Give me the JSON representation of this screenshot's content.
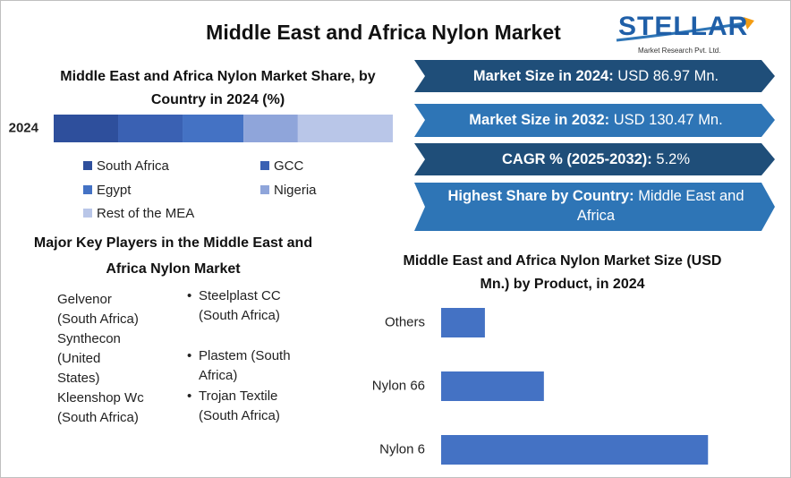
{
  "header": {
    "title": "Middle East and Africa Nylon Market",
    "logo": "STELLAR",
    "tagline": "Market Research Pvt. Ltd."
  },
  "stats": [
    {
      "label": "Market Size in 2024:",
      "value": "USD 86.97 Mn."
    },
    {
      "label": "Market Size in 2032:",
      "value": "USD 130.47 Mn."
    },
    {
      "label": "CAGR % (2025-2032):",
      "value": "5.2%"
    },
    {
      "label": "Highest Share by Country:",
      "value": "Middle East and Africa"
    }
  ],
  "players": {
    "title": "Major Key Players in the Middle East and Africa Nylon Market",
    "items": [
      "Gelvenor (South Africa)",
      "Synthecon (United States)",
      "Kleenshop Wc (South Africa)",
      "Steelplast CC (South Africa)",
      "Plastem (South Africa)",
      "Trojan Textile (South Africa)"
    ]
  },
  "chart_data": [
    {
      "type": "bar",
      "orientation": "horizontal",
      "stacked": true,
      "title": "Middle East and Africa Nylon Market Share, by Country in 2024 (%)",
      "categories": [
        "2024"
      ],
      "xlim": [
        0,
        100
      ],
      "series": [
        {
          "name": "South Africa",
          "color": "#2e4f9c",
          "values": [
            19
          ]
        },
        {
          "name": "GCC",
          "color": "#3a61b3",
          "values": [
            19
          ]
        },
        {
          "name": "Egypt",
          "color": "#4472c4",
          "values": [
            18
          ]
        },
        {
          "name": "Nigeria",
          "color": "#8fa5da",
          "values": [
            16
          ]
        },
        {
          "name": "Rest of the MEA",
          "color": "#b9c6e8",
          "values": [
            28
          ]
        }
      ]
    },
    {
      "type": "bar",
      "orientation": "horizontal",
      "title": "Middle East and Africa Nylon Market Size (USD Mn.) by Product, in 2024",
      "categories": [
        "Others",
        "Nylon 66",
        "Nylon 6"
      ],
      "values": [
        9.2,
        21.6,
        56.1
      ],
      "color": "#4472c4",
      "xlim": [
        0,
        60
      ]
    }
  ]
}
